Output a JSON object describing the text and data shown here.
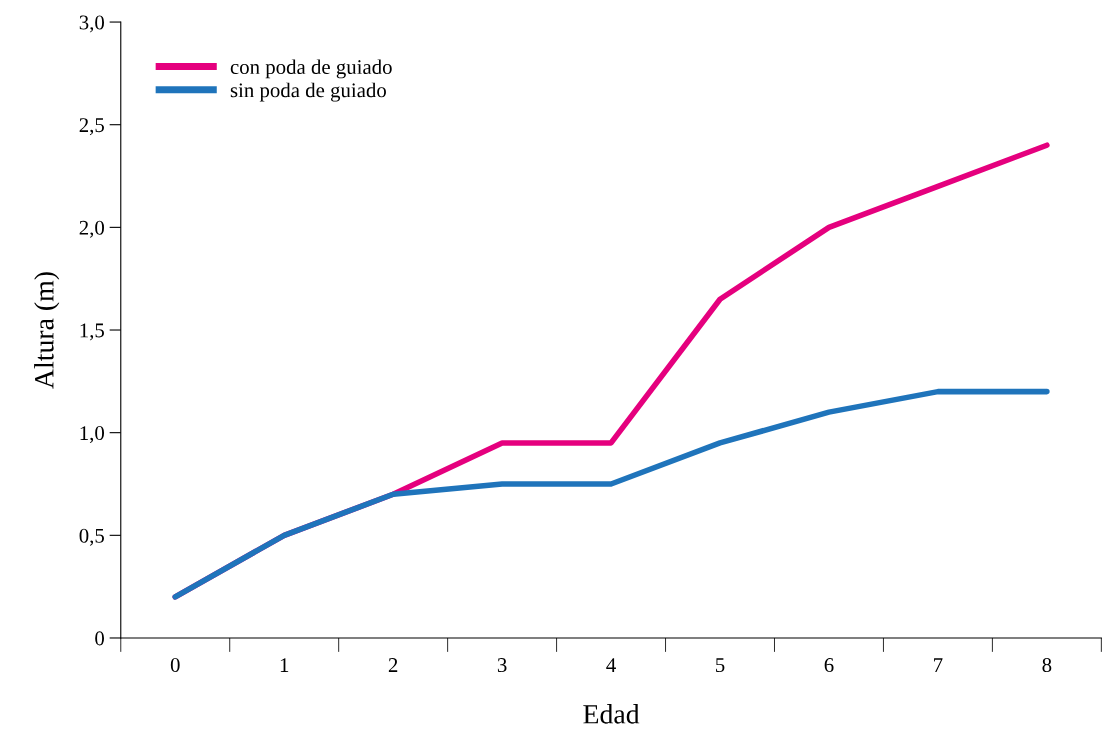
{
  "chart_data": {
    "type": "line",
    "xlabel": "Edad",
    "ylabel": "Altura (m)",
    "categories": [
      "0",
      "1",
      "2",
      "3",
      "4",
      "5",
      "6",
      "7",
      "8"
    ],
    "series": [
      {
        "name": "con poda de guiado",
        "color": "#e5007e",
        "values": [
          0.2,
          0.5,
          0.7,
          0.95,
          0.95,
          1.65,
          2.0,
          2.2,
          2.4
        ]
      },
      {
        "name": "sin poda de guiado",
        "color": "#1f74bb",
        "values": [
          0.2,
          0.5,
          0.7,
          0.75,
          0.75,
          0.95,
          1.1,
          1.2,
          1.2
        ]
      }
    ],
    "ylim": [
      0,
      3.0
    ],
    "yticks": [
      {
        "value": 0,
        "label": "0"
      },
      {
        "value": 0.5,
        "label": "0,5"
      },
      {
        "value": 1.0,
        "label": "1,0"
      },
      {
        "value": 1.5,
        "label": "1,5"
      },
      {
        "value": 2.0,
        "label": "2,0"
      },
      {
        "value": 2.5,
        "label": "2,5"
      },
      {
        "value": 3.0,
        "label": "3,0"
      }
    ],
    "legend": "top left",
    "grid": false,
    "marker": "none",
    "line_style": "solid"
  }
}
